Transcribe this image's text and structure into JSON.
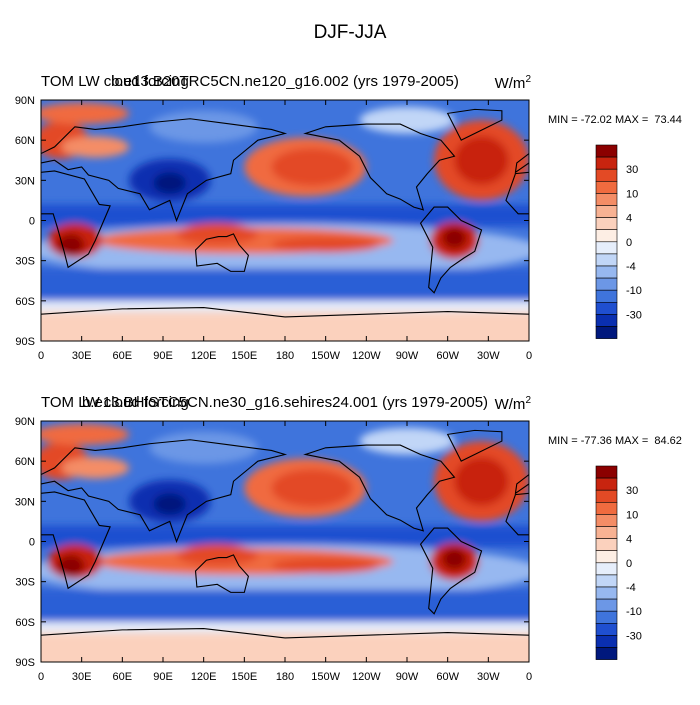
{
  "title": "DJF-JJA",
  "panels": [
    {
      "field_name": "TOM LW cloud forcing",
      "case": "b.e13.B20TRC5CN.ne120_g16.002 (yrs 1979-2005)",
      "units": "W/m",
      "units_power": "2",
      "stats": "MIN = -72.02 MAX =  73.44"
    },
    {
      "field_name": "TOM LW cloud forcing",
      "case": "b.e13.BHISTC5CN.ne30_g16.sehires24.001 (yrs 1979-2005)",
      "units": "W/m",
      "units_power": "2",
      "stats": "MIN = -77.36 MAX =  84.62"
    }
  ],
  "lon_ticks": [
    "0",
    "30E",
    "60E",
    "90E",
    "120E",
    "150E",
    "180",
    "150W",
    "120W",
    "90W",
    "60W",
    "30W",
    "0"
  ],
  "lat_ticks": [
    "90N",
    "60N",
    "30N",
    "0",
    "30S",
    "60S",
    "90S"
  ],
  "colorbar": {
    "labels": [
      30,
      10,
      4,
      0,
      -4,
      -10,
      -30
    ],
    "colors": [
      "#8b0000",
      "#c8240f",
      "#e34a25",
      "#f06b3f",
      "#f48d66",
      "#f8b293",
      "#fbd1bd",
      "#fdeee4",
      "#e6eefb",
      "#c1d6f7",
      "#97b8f0",
      "#6c97e6",
      "#3f74dc",
      "#1f4fd0",
      "#0a2fb0",
      "#00187d"
    ]
  }
}
